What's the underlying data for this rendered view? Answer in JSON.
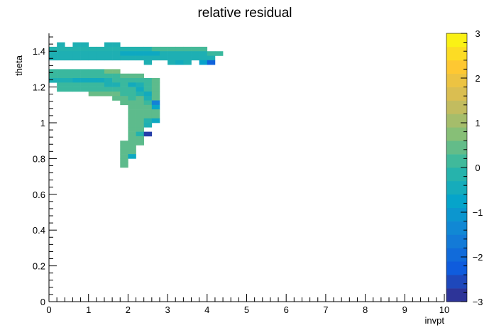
{
  "chart_data": {
    "type": "heatmap",
    "title": "relative residual",
    "xlabel": "invpt",
    "ylabel": "theta",
    "xlim": [
      0,
      10
    ],
    "ylim": [
      0,
      1.5
    ],
    "x_bin_width": 0.2,
    "y_bin_width": 0.025,
    "zlim": [
      -3,
      3
    ],
    "x_ticks": [
      "0",
      "1",
      "2",
      "3",
      "4",
      "5",
      "6",
      "7",
      "8",
      "9",
      "10"
    ],
    "y_ticks": [
      "0",
      "0.2",
      "0.4",
      "0.6",
      "0.8",
      "1",
      "1.2",
      "1.4"
    ],
    "z_ticks": [
      "−3",
      "−2",
      "−1",
      "0",
      "1",
      "2",
      "3"
    ],
    "grid": false,
    "colorscale": [
      "#352a87",
      "#0f5cdd",
      "#1481d6",
      "#06a4ca",
      "#2eb7a4",
      "#87bf77",
      "#d1bb59",
      "#fec832",
      "#f9fb0e"
    ],
    "bins": [
      {
        "x": 0.2,
        "y": 1.4375,
        "z": -0.3
      },
      {
        "x": 0.6,
        "y": 1.4375,
        "z": -0.3
      },
      {
        "x": 0.8,
        "y": 1.4375,
        "z": -0.3
      },
      {
        "x": 1.4,
        "y": 1.4375,
        "z": -0.3
      },
      {
        "x": 1.6,
        "y": 1.4375,
        "z": -0.3
      },
      {
        "x": 0.0,
        "y": 1.4125,
        "z": -0.2
      },
      {
        "x": 0.2,
        "y": 1.4125,
        "z": -0.2
      },
      {
        "x": 0.4,
        "y": 1.4125,
        "z": -0.2
      },
      {
        "x": 0.6,
        "y": 1.4125,
        "z": -0.2
      },
      {
        "x": 0.8,
        "y": 1.4125,
        "z": -0.2
      },
      {
        "x": 1.0,
        "y": 1.4125,
        "z": -0.2
      },
      {
        "x": 1.2,
        "y": 1.4125,
        "z": -0.2
      },
      {
        "x": 1.4,
        "y": 1.4125,
        "z": -0.2
      },
      {
        "x": 1.6,
        "y": 1.4125,
        "z": -0.2
      },
      {
        "x": 1.8,
        "y": 1.4125,
        "z": -0.2
      },
      {
        "x": 2.0,
        "y": 1.4125,
        "z": -0.2
      },
      {
        "x": 2.2,
        "y": 1.4125,
        "z": -0.2
      },
      {
        "x": 2.4,
        "y": 1.4125,
        "z": -0.2
      },
      {
        "x": 2.6,
        "y": 1.4125,
        "z": 0.2
      },
      {
        "x": 2.8,
        "y": 1.4125,
        "z": 0.2
      },
      {
        "x": 3.0,
        "y": 1.4125,
        "z": 0.2
      },
      {
        "x": 3.2,
        "y": 1.4125,
        "z": 0.2
      },
      {
        "x": 3.4,
        "y": 1.4125,
        "z": 0.2
      },
      {
        "x": 3.6,
        "y": 1.4125,
        "z": 0.2
      },
      {
        "x": 3.8,
        "y": 1.4125,
        "z": 0.2
      },
      {
        "x": 0.0,
        "y": 1.3875,
        "z": -0.3
      },
      {
        "x": 0.2,
        "y": 1.3875,
        "z": -0.3
      },
      {
        "x": 0.4,
        "y": 1.3875,
        "z": -0.3
      },
      {
        "x": 0.6,
        "y": 1.3875,
        "z": -0.3
      },
      {
        "x": 0.8,
        "y": 1.3875,
        "z": -0.3
      },
      {
        "x": 1.0,
        "y": 1.3875,
        "z": -0.3
      },
      {
        "x": 1.2,
        "y": 1.3875,
        "z": -0.3
      },
      {
        "x": 1.4,
        "y": 1.3875,
        "z": -0.3
      },
      {
        "x": 1.6,
        "y": 1.3875,
        "z": -0.3
      },
      {
        "x": 1.8,
        "y": 1.3875,
        "z": -0.6
      },
      {
        "x": 2.0,
        "y": 1.3875,
        "z": -0.6
      },
      {
        "x": 2.2,
        "y": 1.3875,
        "z": -0.6
      },
      {
        "x": 2.4,
        "y": 1.3875,
        "z": -0.6
      },
      {
        "x": 2.6,
        "y": 1.3875,
        "z": -0.6
      },
      {
        "x": 2.8,
        "y": 1.3875,
        "z": -0.3
      },
      {
        "x": 3.0,
        "y": 1.3875,
        "z": -0.3
      },
      {
        "x": 3.2,
        "y": 1.3875,
        "z": -0.3
      },
      {
        "x": 3.4,
        "y": 1.3875,
        "z": -0.3
      },
      {
        "x": 3.6,
        "y": 1.3875,
        "z": -0.3
      },
      {
        "x": 3.8,
        "y": 1.3875,
        "z": -0.3
      },
      {
        "x": 4.0,
        "y": 1.3875,
        "z": 0.1
      },
      {
        "x": 4.2,
        "y": 1.3875,
        "z": 0.1
      },
      {
        "x": 0.0,
        "y": 1.3625,
        "z": -0.3
      },
      {
        "x": 0.2,
        "y": 1.3625,
        "z": -0.3
      },
      {
        "x": 0.4,
        "y": 1.3625,
        "z": -0.3
      },
      {
        "x": 0.6,
        "y": 1.3625,
        "z": -0.3
      },
      {
        "x": 0.8,
        "y": 1.3625,
        "z": -0.3
      },
      {
        "x": 1.0,
        "y": 1.3625,
        "z": -0.3
      },
      {
        "x": 1.2,
        "y": 1.3625,
        "z": -0.3
      },
      {
        "x": 1.4,
        "y": 1.3625,
        "z": -0.3
      },
      {
        "x": 1.6,
        "y": 1.3625,
        "z": -0.3
      },
      {
        "x": 1.8,
        "y": 1.3625,
        "z": -0.3
      },
      {
        "x": 2.0,
        "y": 1.3625,
        "z": -0.3
      },
      {
        "x": 2.2,
        "y": 1.3625,
        "z": -0.3
      },
      {
        "x": 2.4,
        "y": 1.3625,
        "z": -0.3
      },
      {
        "x": 2.6,
        "y": 1.3625,
        "z": -0.3
      },
      {
        "x": 2.8,
        "y": 1.3625,
        "z": -0.3
      },
      {
        "x": 3.0,
        "y": 1.3625,
        "z": -0.3
      },
      {
        "x": 3.2,
        "y": 1.3625,
        "z": -0.3
      },
      {
        "x": 3.4,
        "y": 1.3625,
        "z": -0.3
      },
      {
        "x": 3.6,
        "y": 1.3625,
        "z": -0.3
      },
      {
        "x": 3.8,
        "y": 1.3625,
        "z": -0.3
      },
      {
        "x": 4.0,
        "y": 1.3625,
        "z": -0.3
      },
      {
        "x": 2.4,
        "y": 1.3375,
        "z": -0.3
      },
      {
        "x": 3.0,
        "y": 1.3375,
        "z": -0.3
      },
      {
        "x": 3.2,
        "y": 1.3375,
        "z": -0.5
      },
      {
        "x": 3.4,
        "y": 1.3375,
        "z": -0.3
      },
      {
        "x": 3.8,
        "y": 1.3375,
        "z": -0.8
      },
      {
        "x": 4.0,
        "y": 1.3375,
        "z": -2.1
      },
      {
        "x": 0.0,
        "y": 1.2875,
        "z": 0.1
      },
      {
        "x": 0.2,
        "y": 1.2875,
        "z": 0.1
      },
      {
        "x": 0.4,
        "y": 1.2875,
        "z": 0.1
      },
      {
        "x": 0.6,
        "y": 1.2875,
        "z": 0.1
      },
      {
        "x": 0.8,
        "y": 1.2875,
        "z": 0.1
      },
      {
        "x": 1.0,
        "y": 1.2875,
        "z": 0.1
      },
      {
        "x": 1.2,
        "y": 1.2875,
        "z": 0.1
      },
      {
        "x": 1.4,
        "y": 1.2875,
        "z": 0.6
      },
      {
        "x": 1.6,
        "y": 1.2875,
        "z": 0.6
      },
      {
        "x": 0.0,
        "y": 1.2625,
        "z": 0.1
      },
      {
        "x": 0.2,
        "y": 1.2625,
        "z": 0.1
      },
      {
        "x": 0.4,
        "y": 1.2625,
        "z": 0.1
      },
      {
        "x": 0.6,
        "y": 1.2625,
        "z": 0.1
      },
      {
        "x": 0.8,
        "y": 1.2625,
        "z": 0.1
      },
      {
        "x": 1.0,
        "y": 1.2625,
        "z": 0.1
      },
      {
        "x": 1.2,
        "y": 1.2625,
        "z": 0.1
      },
      {
        "x": 1.4,
        "y": 1.2625,
        "z": 0.1
      },
      {
        "x": 1.6,
        "y": 1.2625,
        "z": 0.1
      },
      {
        "x": 1.8,
        "y": 1.2625,
        "z": 0.4
      },
      {
        "x": 2.0,
        "y": 1.2625,
        "z": 0.4
      },
      {
        "x": 2.2,
        "y": 1.2625,
        "z": 0.4
      },
      {
        "x": 0.0,
        "y": 1.2375,
        "z": -0.3
      },
      {
        "x": 0.2,
        "y": 1.2375,
        "z": -0.3
      },
      {
        "x": 0.4,
        "y": 1.2375,
        "z": -0.3
      },
      {
        "x": 0.6,
        "y": 1.2375,
        "z": -0.5
      },
      {
        "x": 0.8,
        "y": 1.2375,
        "z": -0.5
      },
      {
        "x": 1.0,
        "y": 1.2375,
        "z": -0.5
      },
      {
        "x": 1.2,
        "y": 1.2375,
        "z": -0.5
      },
      {
        "x": 1.4,
        "y": 1.2375,
        "z": -0.3
      },
      {
        "x": 1.6,
        "y": 1.2375,
        "z": 0.1
      },
      {
        "x": 1.8,
        "y": 1.2375,
        "z": 0.1
      },
      {
        "x": 2.0,
        "y": 1.2375,
        "z": 0.1
      },
      {
        "x": 2.2,
        "y": 1.2375,
        "z": 0.1
      },
      {
        "x": 2.4,
        "y": 1.2375,
        "z": 0.1
      },
      {
        "x": 2.6,
        "y": 1.2375,
        "z": 0.4
      },
      {
        "x": 0.2,
        "y": 1.2125,
        "z": 0.1
      },
      {
        "x": 0.4,
        "y": 1.2125,
        "z": 0.1
      },
      {
        "x": 0.6,
        "y": 1.2125,
        "z": 0.1
      },
      {
        "x": 0.8,
        "y": 1.2125,
        "z": 0.1
      },
      {
        "x": 1.0,
        "y": 1.2125,
        "z": 0.1
      },
      {
        "x": 1.2,
        "y": 1.2125,
        "z": 0.1
      },
      {
        "x": 1.4,
        "y": 1.2125,
        "z": -0.3
      },
      {
        "x": 1.6,
        "y": 1.2125,
        "z": -0.3
      },
      {
        "x": 1.8,
        "y": 1.2125,
        "z": 0.1
      },
      {
        "x": 2.0,
        "y": 1.2125,
        "z": -0.5
      },
      {
        "x": 2.2,
        "y": 1.2125,
        "z": -0.3
      },
      {
        "x": 2.4,
        "y": 1.2125,
        "z": 0.1
      },
      {
        "x": 2.6,
        "y": 1.2125,
        "z": 0.4
      },
      {
        "x": 0.2,
        "y": 1.1875,
        "z": 0.1
      },
      {
        "x": 0.4,
        "y": 1.1875,
        "z": 0.1
      },
      {
        "x": 0.6,
        "y": 1.1875,
        "z": 0.1
      },
      {
        "x": 0.8,
        "y": 1.1875,
        "z": 0.1
      },
      {
        "x": 1.0,
        "y": 1.1875,
        "z": 0.1
      },
      {
        "x": 1.2,
        "y": 1.1875,
        "z": 0.1
      },
      {
        "x": 1.4,
        "y": 1.1875,
        "z": 0.1
      },
      {
        "x": 1.6,
        "y": 1.1875,
        "z": 0.1
      },
      {
        "x": 1.8,
        "y": 1.1875,
        "z": 0.1
      },
      {
        "x": 2.0,
        "y": 1.1875,
        "z": 0.1
      },
      {
        "x": 2.2,
        "y": 1.1875,
        "z": -0.5
      },
      {
        "x": 2.4,
        "y": 1.1875,
        "z": 0.1
      },
      {
        "x": 2.6,
        "y": 1.1875,
        "z": 0.4
      },
      {
        "x": 1.0,
        "y": 1.1625,
        "z": 0.5
      },
      {
        "x": 1.2,
        "y": 1.1625,
        "z": 0.5
      },
      {
        "x": 1.4,
        "y": 1.1625,
        "z": 0.5
      },
      {
        "x": 1.6,
        "y": 1.1625,
        "z": 0.5
      },
      {
        "x": 1.8,
        "y": 1.1625,
        "z": 0.1
      },
      {
        "x": 2.0,
        "y": 1.1625,
        "z": 0.1
      },
      {
        "x": 2.2,
        "y": 1.1625,
        "z": -0.2
      },
      {
        "x": 2.4,
        "y": 1.1625,
        "z": -0.5
      },
      {
        "x": 2.6,
        "y": 1.1625,
        "z": 0.4
      },
      {
        "x": 1.6,
        "y": 1.1375,
        "z": 0.4
      },
      {
        "x": 1.8,
        "y": 1.1375,
        "z": 0.4
      },
      {
        "x": 2.0,
        "y": 1.1375,
        "z": 0.1
      },
      {
        "x": 2.2,
        "y": 1.1375,
        "z": 0.4
      },
      {
        "x": 2.4,
        "y": 1.1375,
        "z": -0.3
      },
      {
        "x": 2.6,
        "y": 1.1375,
        "z": 0.4
      },
      {
        "x": 1.8,
        "y": 1.1125,
        "z": 0.4
      },
      {
        "x": 2.0,
        "y": 1.1125,
        "z": 0.4
      },
      {
        "x": 2.2,
        "y": 1.1125,
        "z": 0.4
      },
      {
        "x": 2.4,
        "y": 1.1125,
        "z": 0.1
      },
      {
        "x": 2.6,
        "y": 1.1125,
        "z": -1.5
      },
      {
        "x": 2.0,
        "y": 1.0875,
        "z": 0.4
      },
      {
        "x": 2.2,
        "y": 1.0875,
        "z": 0.4
      },
      {
        "x": 2.4,
        "y": 1.0875,
        "z": 0.4
      },
      {
        "x": 2.6,
        "y": 1.0875,
        "z": -0.7
      },
      {
        "x": 2.0,
        "y": 1.0625,
        "z": 0.4
      },
      {
        "x": 2.2,
        "y": 1.0625,
        "z": 0.4
      },
      {
        "x": 2.4,
        "y": 1.0625,
        "z": 0.4
      },
      {
        "x": 2.6,
        "y": 1.0625,
        "z": 0.4
      },
      {
        "x": 2.0,
        "y": 1.0375,
        "z": 0.4
      },
      {
        "x": 2.2,
        "y": 1.0375,
        "z": 0.4
      },
      {
        "x": 2.4,
        "y": 1.0375,
        "z": 0.4
      },
      {
        "x": 2.6,
        "y": 1.0375,
        "z": 0.4
      },
      {
        "x": 2.0,
        "y": 1.0125,
        "z": 0.4
      },
      {
        "x": 2.2,
        "y": 1.0125,
        "z": 0.4
      },
      {
        "x": 2.4,
        "y": 1.0125,
        "z": -0.2
      },
      {
        "x": 2.6,
        "y": 1.0125,
        "z": -0.6
      },
      {
        "x": 2.0,
        "y": 0.9875,
        "z": 0.4
      },
      {
        "x": 2.2,
        "y": 0.9875,
        "z": 0.4
      },
      {
        "x": 2.4,
        "y": 0.9875,
        "z": -0.3
      },
      {
        "x": 2.0,
        "y": 0.9625,
        "z": 0.4
      },
      {
        "x": 2.2,
        "y": 0.9625,
        "z": 0.4
      },
      {
        "x": 2.0,
        "y": 0.9375,
        "z": 0.4
      },
      {
        "x": 2.2,
        "y": 0.9375,
        "z": -0.2
      },
      {
        "x": 2.4,
        "y": 0.9375,
        "z": -2.7
      },
      {
        "x": 2.0,
        "y": 0.9125,
        "z": 0.4
      },
      {
        "x": 2.2,
        "y": 0.9125,
        "z": 0.4
      },
      {
        "x": 1.8,
        "y": 0.8875,
        "z": 0.4
      },
      {
        "x": 2.0,
        "y": 0.8875,
        "z": 0.4
      },
      {
        "x": 2.2,
        "y": 0.8875,
        "z": 0.4
      },
      {
        "x": 1.8,
        "y": 0.8625,
        "z": 0.4
      },
      {
        "x": 2.0,
        "y": 0.8625,
        "z": 0.4
      },
      {
        "x": 1.8,
        "y": 0.8375,
        "z": 0.4
      },
      {
        "x": 2.0,
        "y": 0.8375,
        "z": 0.4
      },
      {
        "x": 1.8,
        "y": 0.8125,
        "z": 0.4
      },
      {
        "x": 2.0,
        "y": 0.8125,
        "z": -0.6
      },
      {
        "x": 1.8,
        "y": 0.7875,
        "z": 0.4
      },
      {
        "x": 1.8,
        "y": 0.7625,
        "z": 0.4
      }
    ]
  }
}
